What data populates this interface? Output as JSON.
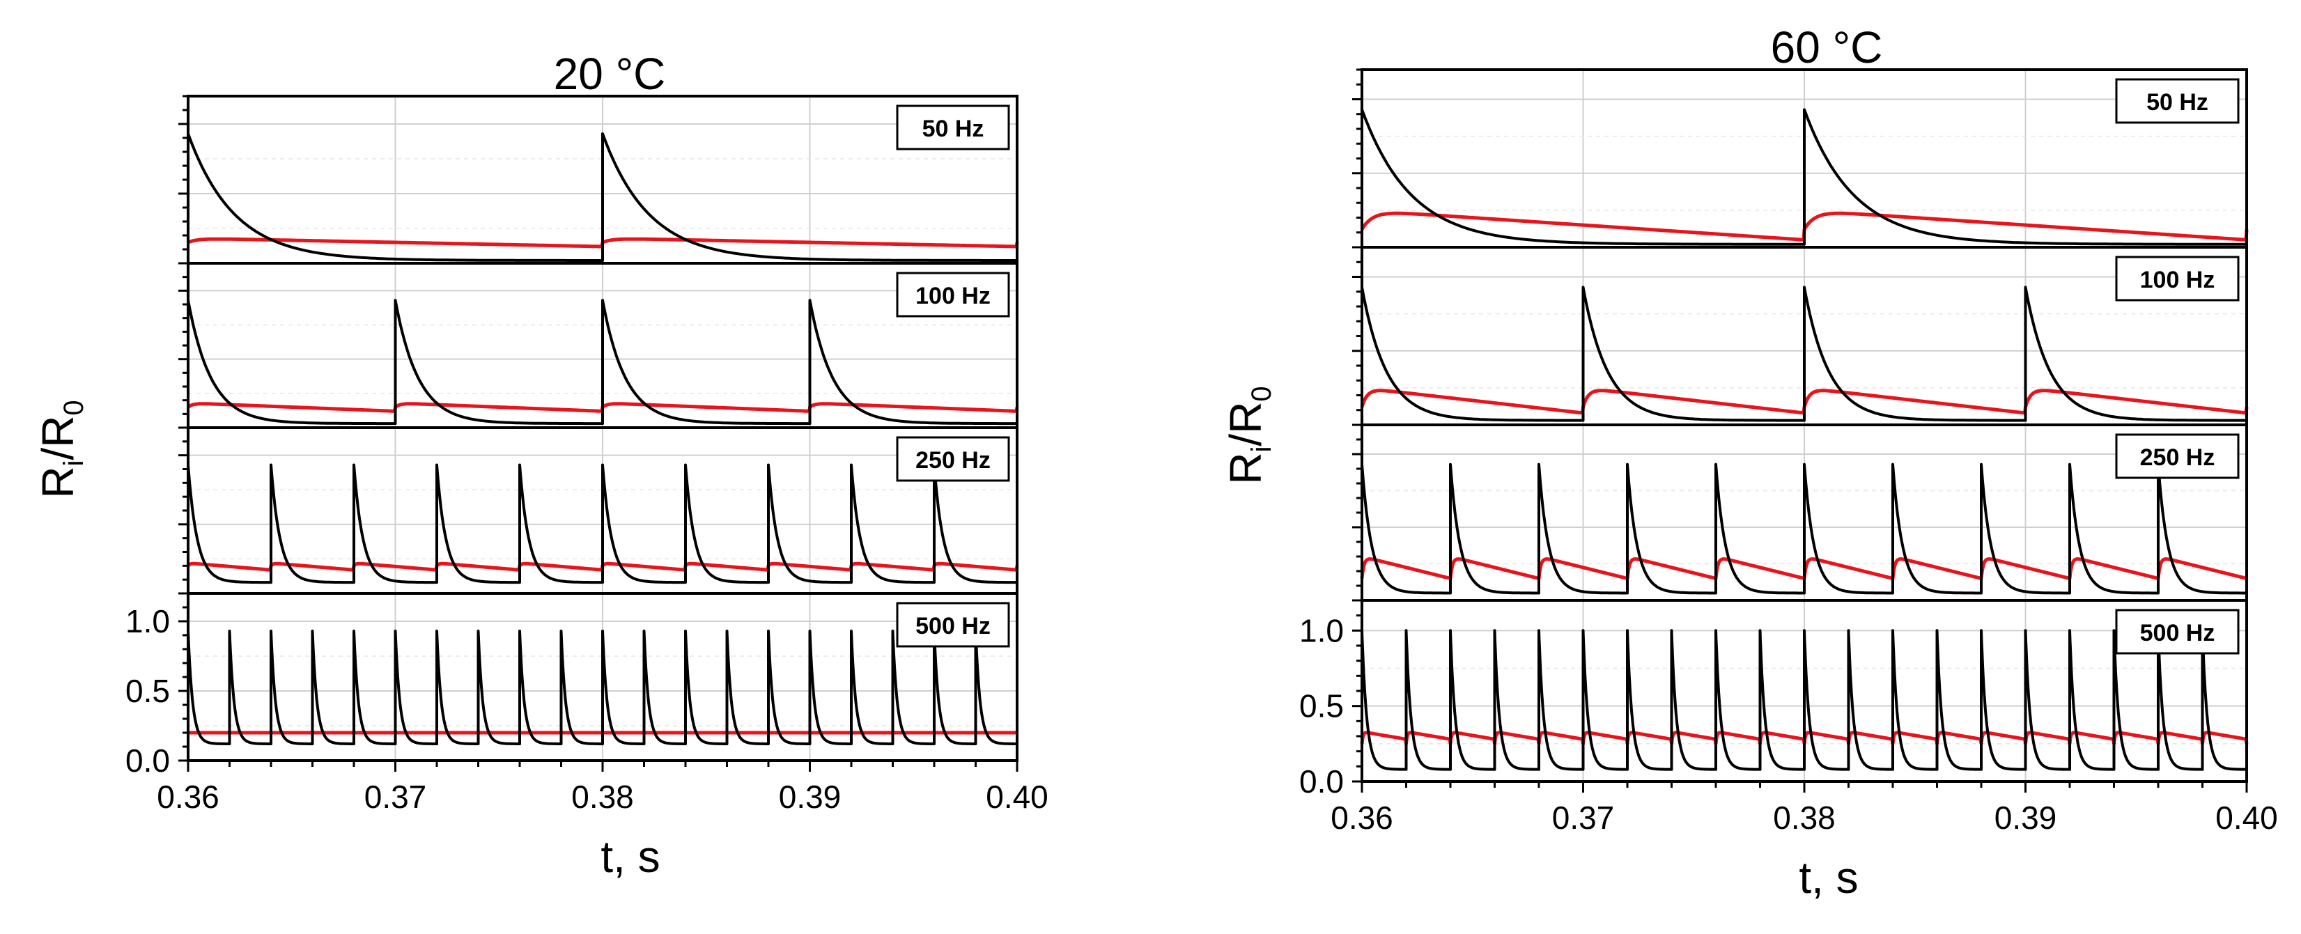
{
  "chart_data": [
    {
      "type": "line",
      "title": "20 °C",
      "xlabel": "t, s",
      "ylabel": "Ri/R0",
      "ylabel_parts": {
        "r1": "R",
        "s1": "i",
        "slash": "/",
        "r2": "R",
        "s2": "0"
      },
      "xlim": [
        0.36,
        0.4
      ],
      "xticks": [
        "0.36",
        "0.37",
        "0.38",
        "0.39",
        "0.40"
      ],
      "xtick_values": [
        0.36,
        0.37,
        0.38,
        0.39,
        0.4
      ],
      "ylim": [
        0.0,
        1.2
      ],
      "yticks": [
        "0.0",
        "0.5",
        "1.0"
      ],
      "ytick_values": [
        0.0,
        0.5,
        1.0
      ],
      "grid": true,
      "panels": [
        {
          "label": "50 Hz",
          "frequency_hz": 50,
          "peak": 0.93,
          "min": 0.02,
          "red_base": 0.15,
          "red_peak": 0.18,
          "red_end": 0.12
        },
        {
          "label": "100 Hz",
          "frequency_hz": 100,
          "peak": 0.93,
          "min": 0.03,
          "red_base": 0.15,
          "red_peak": 0.18,
          "red_end": 0.12
        },
        {
          "label": "250 Hz",
          "frequency_hz": 250,
          "peak": 0.93,
          "min": 0.08,
          "red_base": 0.2,
          "red_peak": 0.22,
          "red_end": 0.17
        },
        {
          "label": "500 Hz",
          "frequency_hz": 500,
          "peak": 0.93,
          "min": 0.12,
          "red_base": 0.2,
          "red_peak": 0.2,
          "red_end": 0.2
        }
      ]
    },
    {
      "type": "line",
      "title": "60 °C",
      "xlabel": "t, s",
      "ylabel": "Ri/R0",
      "ylabel_parts": {
        "r1": "R",
        "s1": "i",
        "slash": "/",
        "r2": "R",
        "s2": "0"
      },
      "xlim": [
        0.36,
        0.4
      ],
      "xticks": [
        "0.36",
        "0.37",
        "0.38",
        "0.39",
        "0.40"
      ],
      "xtick_values": [
        0.36,
        0.37,
        0.38,
        0.39,
        0.4
      ],
      "ylim": [
        0.0,
        1.2
      ],
      "yticks": [
        "0.0",
        "0.5",
        "1.0"
      ],
      "ytick_values": [
        0.0,
        0.5,
        1.0
      ],
      "grid": true,
      "panels": [
        {
          "label": "50 Hz",
          "frequency_hz": 50,
          "peak": 0.93,
          "min": 0.02,
          "red_base": 0.12,
          "red_peak": 0.25,
          "red_end": 0.05
        },
        {
          "label": "100 Hz",
          "frequency_hz": 100,
          "peak": 0.93,
          "min": 0.03,
          "red_base": 0.12,
          "red_peak": 0.25,
          "red_end": 0.08
        },
        {
          "label": "250 Hz",
          "frequency_hz": 250,
          "peak": 0.93,
          "min": 0.05,
          "red_base": 0.15,
          "red_peak": 0.3,
          "red_end": 0.15
        },
        {
          "label": "500 Hz",
          "frequency_hz": 500,
          "peak": 1.0,
          "min": 0.08,
          "red_base": 0.25,
          "red_peak": 0.33,
          "red_end": 0.28
        }
      ]
    }
  ]
}
